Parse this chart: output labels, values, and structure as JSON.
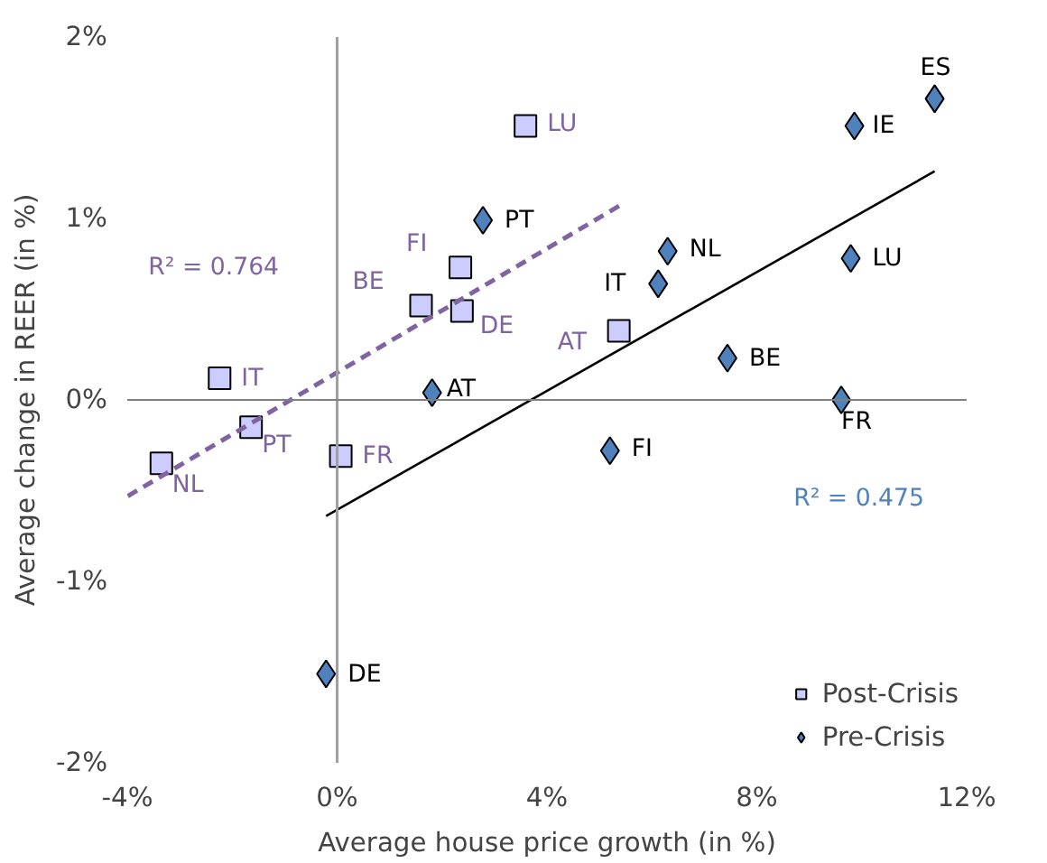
{
  "chart_data": {
    "type": "scatter",
    "xlabel": "Average house price growth (in %)",
    "ylabel": "Average change in REER (in %)",
    "xlim": [
      -4,
      12
    ],
    "ylim": [
      -2,
      2
    ],
    "xticks": [
      {
        "value": -4,
        "label": "-4%"
      },
      {
        "value": 0,
        "label": "0%"
      },
      {
        "value": 4,
        "label": "4%"
      },
      {
        "value": 8,
        "label": "8%"
      },
      {
        "value": 12,
        "label": "12%"
      }
    ],
    "yticks": [
      {
        "value": -2,
        "label": "-2%"
      },
      {
        "value": -1,
        "label": "-1%"
      },
      {
        "value": 0,
        "label": "0%"
      },
      {
        "value": 1,
        "label": "1%"
      },
      {
        "value": 2,
        "label": "2%"
      }
    ],
    "grid": false,
    "legend": "bottom right",
    "series": [
      {
        "name": "Post-Crisis",
        "marker": "square",
        "color": "#ccccff",
        "x": [
          3.59,
          2.35,
          1.6,
          2.38,
          5.37,
          -2.24,
          -1.64,
          -3.35,
          0.07
        ],
        "values": [
          1.51,
          0.73,
          0.52,
          0.49,
          0.38,
          0.12,
          -0.15,
          -0.35,
          -0.31
        ],
        "value_labels": [
          "LU",
          "FI",
          "BE",
          "DE",
          "AT",
          "IT",
          "PT",
          "NL",
          "FR"
        ]
      },
      {
        "name": "Pre-Crisis",
        "marker": "diamond",
        "color": "#4f81bd",
        "x": [
          11.39,
          9.86,
          2.78,
          6.3,
          9.79,
          6.12,
          7.44,
          1.81,
          9.61,
          5.2,
          -0.21
        ],
        "values": [
          1.66,
          1.51,
          0.99,
          0.82,
          0.78,
          0.64,
          0.23,
          0.04,
          0.0,
          -0.28,
          -1.51
        ],
        "value_labels": [
          "ES",
          "IE",
          "PT",
          "NL",
          "LU",
          "IT",
          "BE",
          "AT",
          "FR",
          "FI",
          "DE"
        ]
      },
      {
        "type": "line",
        "line_style": "dashed",
        "color": "#8064a2",
        "x": [
          -3.99,
          5.44
        ],
        "values": [
          -0.53,
          1.08
        ]
      },
      {
        "type": "line",
        "line_style": "solid",
        "color": "#000000",
        "x": [
          -0.21,
          11.39
        ],
        "values": [
          -0.64,
          1.26
        ]
      }
    ],
    "annotations": [
      "R² = 0.764",
      "R² = 0.475"
    ]
  }
}
